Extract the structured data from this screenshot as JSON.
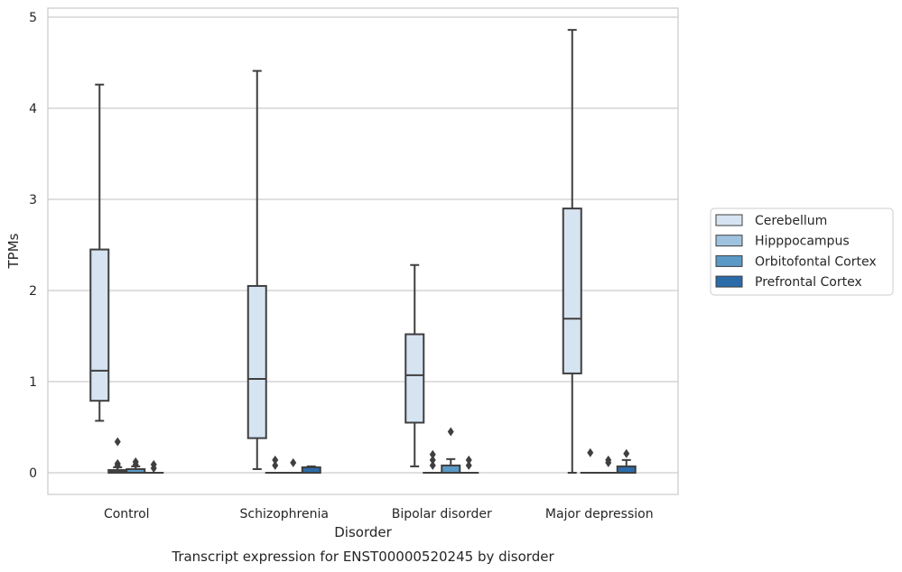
{
  "chart_data": {
    "type": "box",
    "caption": "Transcript expression for ENST00000520245 by disorder",
    "xlabel": "Disorder",
    "ylabel": "TPMs",
    "ylim": [
      -0.23,
      5.1
    ],
    "yticks": [
      0,
      1,
      2,
      3,
      4,
      5
    ],
    "grid": true,
    "legend_position": "right",
    "categories": [
      "Control",
      "Schizophrenia",
      "Bipolar disorder",
      "Major depression"
    ],
    "series": [
      {
        "name": "Cerebellum",
        "color": "#d6e4f2",
        "boxes": [
          {
            "whislo": 0.57,
            "q1": 0.79,
            "med": 1.12,
            "q3": 2.45,
            "whishi": 4.26,
            "fliers": []
          },
          {
            "whislo": 0.04,
            "q1": 0.38,
            "med": 1.03,
            "q3": 2.05,
            "whishi": 4.41,
            "fliers": []
          },
          {
            "whislo": 0.07,
            "q1": 0.55,
            "med": 1.07,
            "q3": 1.52,
            "whishi": 2.28,
            "fliers": []
          },
          {
            "whislo": 0.0,
            "q1": 1.09,
            "med": 1.69,
            "q3": 2.9,
            "whishi": 4.86,
            "fliers": []
          }
        ]
      },
      {
        "name": "Hipppocampus",
        "color": "#9fc3df",
        "boxes": [
          {
            "whislo": 0.0,
            "q1": 0.0,
            "med": 0.01,
            "q3": 0.03,
            "whishi": 0.06,
            "fliers": [
              0.1,
              0.08,
              0.34
            ]
          },
          {
            "whislo": 0.0,
            "q1": 0.0,
            "med": 0.0,
            "q3": 0.0,
            "whishi": 0.0,
            "fliers": [
              0.08,
              0.14
            ]
          },
          {
            "whislo": 0.0,
            "q1": 0.0,
            "med": 0.0,
            "q3": 0.0,
            "whishi": 0.0,
            "fliers": [
              0.08,
              0.14,
              0.2
            ]
          },
          {
            "whislo": 0.0,
            "q1": 0.0,
            "med": 0.0,
            "q3": 0.0,
            "whishi": 0.0,
            "fliers": [
              0.22
            ]
          }
        ]
      },
      {
        "name": "Orbitofontal Cortex",
        "color": "#5b9ac6",
        "boxes": [
          {
            "whislo": 0.0,
            "q1": 0.0,
            "med": 0.0,
            "q3": 0.04,
            "whishi": 0.07,
            "fliers": [
              0.09,
              0.12
            ]
          },
          {
            "whislo": 0.0,
            "q1": 0.0,
            "med": 0.0,
            "q3": 0.0,
            "whishi": 0.0,
            "fliers": [
              0.11
            ]
          },
          {
            "whislo": 0.0,
            "q1": 0.0,
            "med": 0.0,
            "q3": 0.08,
            "whishi": 0.15,
            "fliers": [
              0.45
            ]
          },
          {
            "whislo": 0.0,
            "q1": 0.0,
            "med": 0.0,
            "q3": 0.0,
            "whishi": 0.0,
            "fliers": [
              0.11,
              0.14
            ]
          }
        ]
      },
      {
        "name": "Prefrontal Cortex",
        "color": "#2b6ba9",
        "boxes": [
          {
            "whislo": 0.0,
            "q1": 0.0,
            "med": 0.0,
            "q3": 0.0,
            "whishi": 0.0,
            "fliers": [
              0.05,
              0.09
            ]
          },
          {
            "whislo": 0.0,
            "q1": 0.0,
            "med": 0.0,
            "q3": 0.06,
            "whishi": 0.07,
            "fliers": []
          },
          {
            "whislo": 0.0,
            "q1": 0.0,
            "med": 0.0,
            "q3": 0.0,
            "whishi": 0.0,
            "fliers": [
              0.08,
              0.14
            ]
          },
          {
            "whislo": 0.0,
            "q1": 0.0,
            "med": 0.0,
            "q3": 0.07,
            "whishi": 0.14,
            "fliers": [
              0.21
            ]
          }
        ]
      }
    ]
  }
}
